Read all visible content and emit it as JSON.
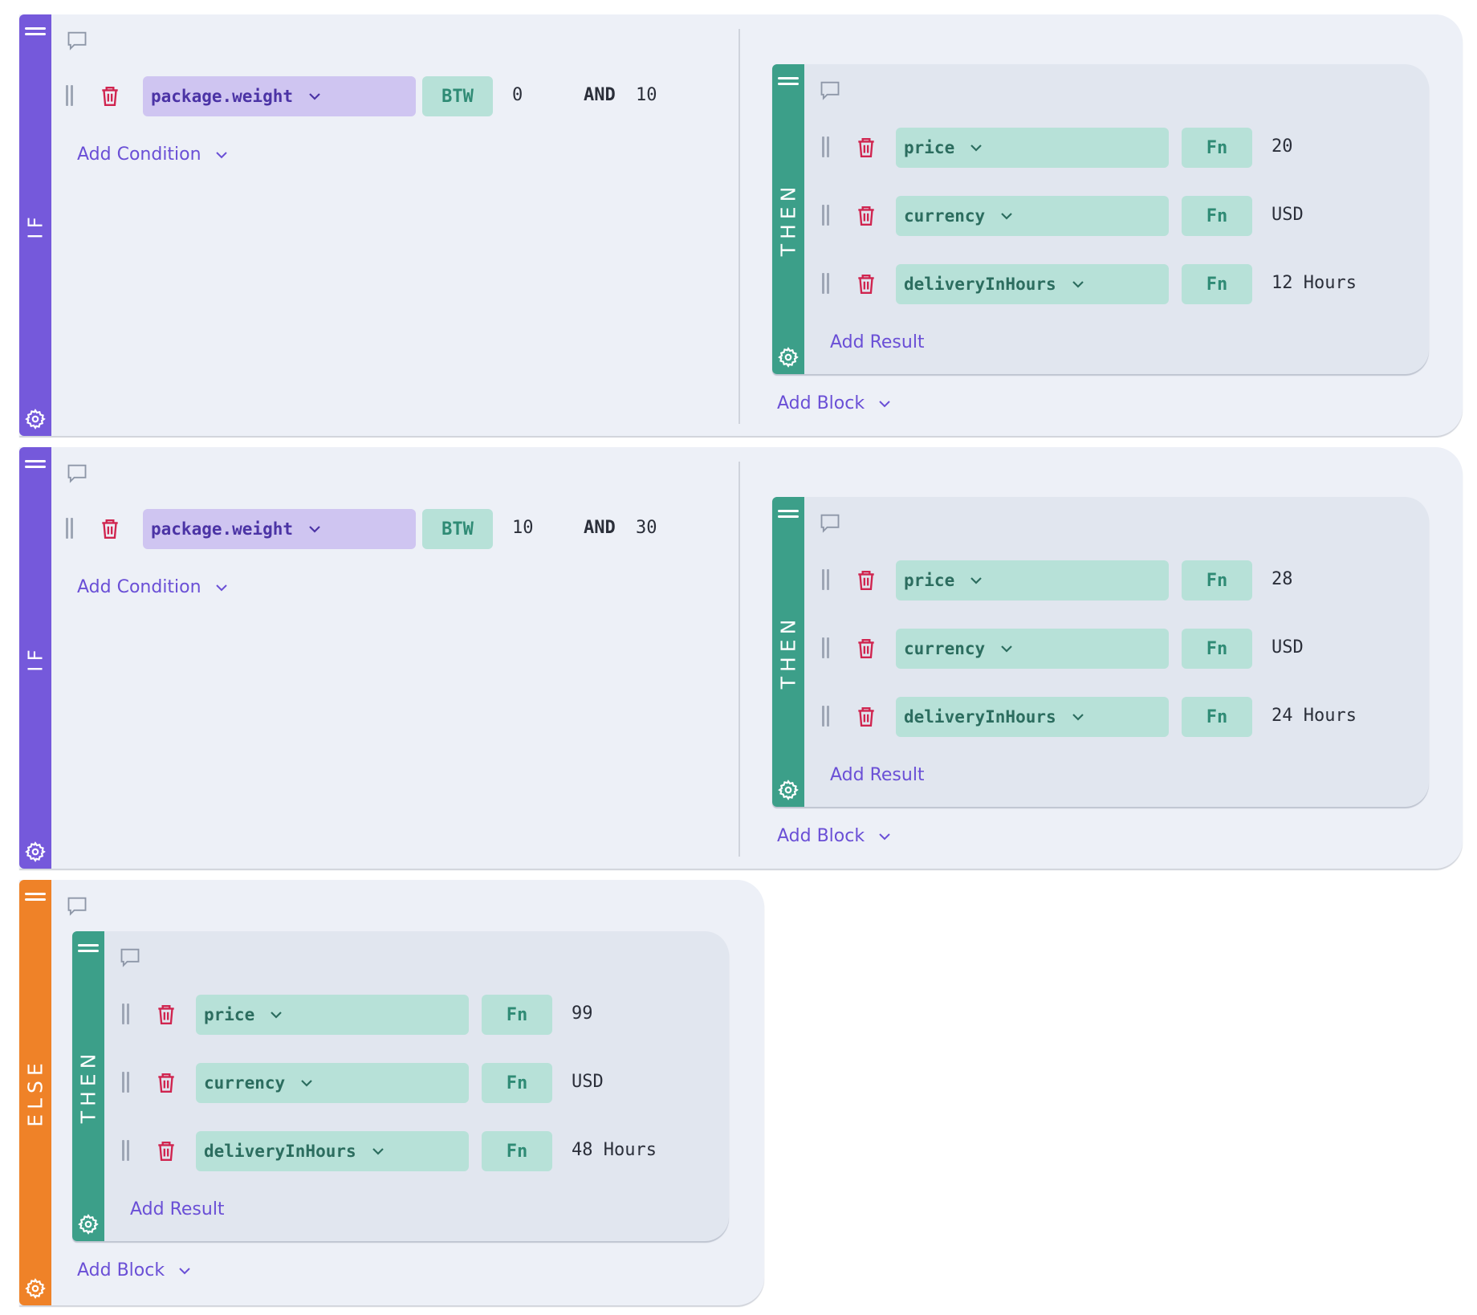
{
  "blocks": [
    {
      "type_label": "IF",
      "conditions": [
        {
          "field": "package.weight",
          "operator": "BTW",
          "value_from": "0",
          "joiner": "AND",
          "value_to": "10"
        }
      ],
      "add_condition_label": "Add Condition",
      "then": {
        "label": "THEN",
        "results": [
          {
            "field": "price",
            "operator": "Fn",
            "value": "20"
          },
          {
            "field": "currency",
            "operator": "Fn",
            "value": "USD"
          },
          {
            "field": "deliveryInHours",
            "operator": "Fn",
            "value": "12 Hours"
          }
        ],
        "add_result_label": "Add Result"
      },
      "add_block_label": "Add Block"
    },
    {
      "type_label": "IF",
      "conditions": [
        {
          "field": "package.weight",
          "operator": "BTW",
          "value_from": "10",
          "joiner": "AND",
          "value_to": "30"
        }
      ],
      "add_condition_label": "Add Condition",
      "then": {
        "label": "THEN",
        "results": [
          {
            "field": "price",
            "operator": "Fn",
            "value": "28"
          },
          {
            "field": "currency",
            "operator": "Fn",
            "value": "USD"
          },
          {
            "field": "deliveryInHours",
            "operator": "Fn",
            "value": "24 Hours"
          }
        ],
        "add_result_label": "Add Result"
      },
      "add_block_label": "Add Block"
    },
    {
      "type_label": "ELSE",
      "then": {
        "label": "THEN",
        "results": [
          {
            "field": "price",
            "operator": "Fn",
            "value": "99"
          },
          {
            "field": "currency",
            "operator": "Fn",
            "value": "USD"
          },
          {
            "field": "deliveryInHours",
            "operator": "Fn",
            "value": "48 Hours"
          }
        ],
        "add_result_label": "Add Result"
      },
      "add_block_label": "Add Block"
    }
  ],
  "colors": {
    "if_rail": "#7559db",
    "then_rail": "#3c9f89",
    "else_rail": "#ef8228",
    "delete_icon": "#d0244f",
    "link": "#6a4fd6"
  },
  "icons": [
    "drag-handle-icon",
    "comment-icon",
    "delete-icon",
    "drag-grip-icon",
    "chevron-down-icon",
    "gear-icon"
  ]
}
